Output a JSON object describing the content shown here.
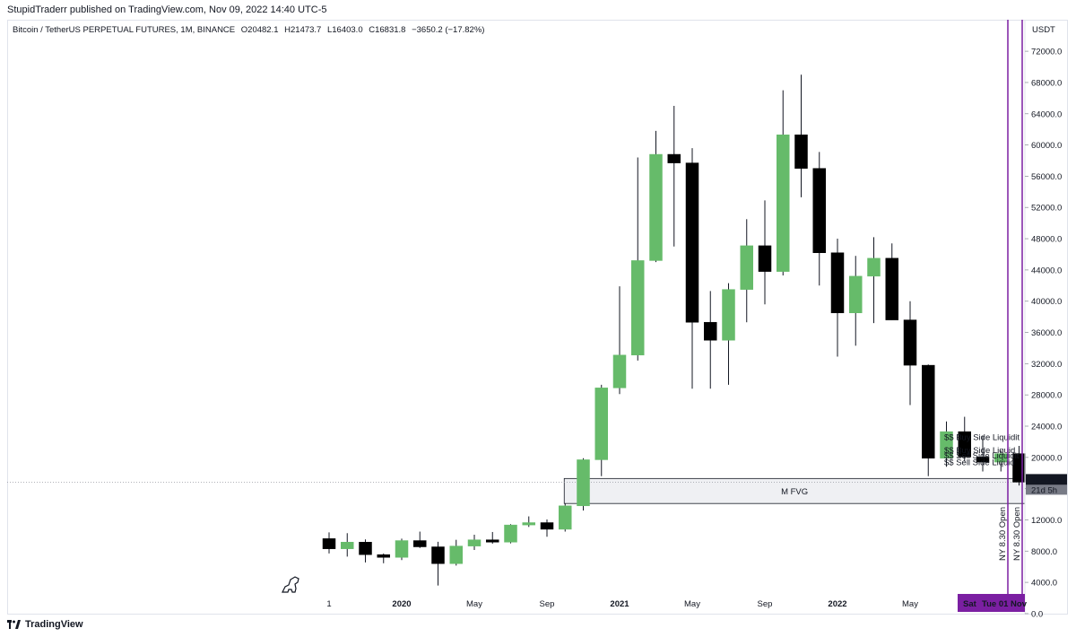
{
  "header": {
    "publisher_line": "StupidTraderr published on TradingView.com, Nov 09, 2022 14:40 UTC-5"
  },
  "legend": {
    "symbol": "Bitcoin / TetherUS PERPETUAL FUTURES, 1M, BINANCE",
    "open": "O20482.1",
    "high": "H21473.7",
    "low": "L16403.0",
    "close": "C16831.8",
    "change": "−3650.2 (−17.82%)"
  },
  "footer": {
    "brand": "TradingView"
  },
  "colors": {
    "up": "#66bb6a",
    "down": "#000000",
    "vline": "#7b1fa2",
    "fvg_fill": "#eff0f3"
  },
  "chart_data": {
    "type": "candlestick",
    "title": "Bitcoin / TetherUS PERPETUAL FUTURES, 1M, BINANCE",
    "currency": "USDT",
    "ylim": [
      -1500,
      75000
    ],
    "y_ticks": [
      0,
      4000,
      8000,
      12000,
      16000,
      20000,
      24000,
      28000,
      32000,
      36000,
      40000,
      44000,
      48000,
      52000,
      56000,
      60000,
      64000,
      68000,
      72000
    ],
    "y_tick_labels": [
      "0.0",
      "4000.0",
      "8000.0",
      "12000.0",
      "16000.0",
      "20000.0",
      "24000.0",
      "28000.0",
      "32000.0",
      "36000.0",
      "40000.0",
      "44000.0",
      "48000.0",
      "52000.0",
      "56000.0",
      "60000.0",
      "64000.0",
      "68000.0",
      "72000.0"
    ],
    "x_labels": [
      {
        "index": 0,
        "label": "1",
        "bold": false
      },
      {
        "index": 4,
        "label": "2020",
        "bold": true
      },
      {
        "index": 8,
        "label": "May",
        "bold": false
      },
      {
        "index": 12,
        "label": "Sep",
        "bold": false
      },
      {
        "index": 16,
        "label": "2021",
        "bold": true
      },
      {
        "index": 20,
        "label": "May",
        "bold": false
      },
      {
        "index": 24,
        "label": "Sep",
        "bold": false
      },
      {
        "index": 28,
        "label": "2022",
        "bold": true
      },
      {
        "index": 32,
        "label": "May",
        "bold": false
      }
    ],
    "candles": [
      {
        "date": "2019-09",
        "o": 9600,
        "h": 10400,
        "l": 7700,
        "c": 8300
      },
      {
        "date": "2019-10",
        "o": 8300,
        "h": 10300,
        "l": 7300,
        "c": 9150
      },
      {
        "date": "2019-11",
        "o": 9150,
        "h": 9500,
        "l": 6550,
        "c": 7550
      },
      {
        "date": "2019-12",
        "o": 7550,
        "h": 7700,
        "l": 6450,
        "c": 7200
      },
      {
        "date": "2020-01",
        "o": 7200,
        "h": 9600,
        "l": 6850,
        "c": 9350
      },
      {
        "date": "2020-02",
        "o": 9350,
        "h": 10500,
        "l": 8400,
        "c": 8550
      },
      {
        "date": "2020-03",
        "o": 8550,
        "h": 9200,
        "l": 3600,
        "c": 6400
      },
      {
        "date": "2020-04",
        "o": 6400,
        "h": 9450,
        "l": 6150,
        "c": 8650
      },
      {
        "date": "2020-05",
        "o": 8650,
        "h": 10100,
        "l": 8150,
        "c": 9450
      },
      {
        "date": "2020-06",
        "o": 9450,
        "h": 10450,
        "l": 8950,
        "c": 9150
      },
      {
        "date": "2020-07",
        "o": 9150,
        "h": 11450,
        "l": 9000,
        "c": 11350
      },
      {
        "date": "2020-08",
        "o": 11350,
        "h": 12450,
        "l": 11100,
        "c": 11650
      },
      {
        "date": "2020-09",
        "o": 11650,
        "h": 12050,
        "l": 9850,
        "c": 10800
      },
      {
        "date": "2020-10",
        "o": 10800,
        "h": 14100,
        "l": 10500,
        "c": 13800
      },
      {
        "date": "2020-11",
        "o": 13800,
        "h": 19900,
        "l": 13200,
        "c": 19700
      },
      {
        "date": "2020-12",
        "o": 19700,
        "h": 29300,
        "l": 17600,
        "c": 28900
      },
      {
        "date": "2021-01",
        "o": 28900,
        "h": 41900,
        "l": 28100,
        "c": 33100
      },
      {
        "date": "2021-02",
        "o": 33100,
        "h": 58400,
        "l": 32400,
        "c": 45200
      },
      {
        "date": "2021-03",
        "o": 45200,
        "h": 61800,
        "l": 45000,
        "c": 58800
      },
      {
        "date": "2021-04",
        "o": 58800,
        "h": 65000,
        "l": 47000,
        "c": 57700
      },
      {
        "date": "2021-05",
        "o": 57700,
        "h": 59600,
        "l": 28800,
        "c": 37300
      },
      {
        "date": "2021-06",
        "o": 37300,
        "h": 41300,
        "l": 28800,
        "c": 35000
      },
      {
        "date": "2021-07",
        "o": 35000,
        "h": 42300,
        "l": 29300,
        "c": 41500
      },
      {
        "date": "2021-08",
        "o": 41500,
        "h": 50500,
        "l": 37300,
        "c": 47100
      },
      {
        "date": "2021-09",
        "o": 47100,
        "h": 52900,
        "l": 39600,
        "c": 43800
      },
      {
        "date": "2021-10",
        "o": 43800,
        "h": 67000,
        "l": 43300,
        "c": 61300
      },
      {
        "date": "2021-11",
        "o": 61300,
        "h": 69000,
        "l": 53300,
        "c": 57000
      },
      {
        "date": "2021-12",
        "o": 57000,
        "h": 59100,
        "l": 42000,
        "c": 46200
      },
      {
        "date": "2022-01",
        "o": 46200,
        "h": 48000,
        "l": 32900,
        "c": 38500
      },
      {
        "date": "2022-02",
        "o": 38500,
        "h": 45800,
        "l": 34300,
        "c": 43200
      },
      {
        "date": "2022-03",
        "o": 43200,
        "h": 48200,
        "l": 37200,
        "c": 45500
      },
      {
        "date": "2022-04",
        "o": 45500,
        "h": 47400,
        "l": 37600,
        "c": 37600
      },
      {
        "date": "2022-05",
        "o": 37600,
        "h": 40000,
        "l": 26700,
        "c": 31800
      },
      {
        "date": "2022-06",
        "o": 31800,
        "h": 31900,
        "l": 17600,
        "c": 19900
      },
      {
        "date": "2022-07",
        "o": 19900,
        "h": 24600,
        "l": 18800,
        "c": 23300
      },
      {
        "date": "2022-08",
        "o": 23300,
        "h": 25200,
        "l": 19500,
        "c": 20050
      },
      {
        "date": "2022-09",
        "o": 20050,
        "h": 22800,
        "l": 18200,
        "c": 19400
      },
      {
        "date": "2022-10",
        "o": 19400,
        "h": 20900,
        "l": 18200,
        "c": 20482
      },
      {
        "date": "2022-11",
        "o": 20482.1,
        "h": 21473.7,
        "l": 16403.0,
        "c": 16831.8
      }
    ],
    "fvg_zone": {
      "label": "M FVG",
      "start_index": 13,
      "top": 17300,
      "bottom": 14100
    },
    "liquidity_labels": [
      {
        "text": "$$ Buy Side Liquidit",
        "price": 22650
      },
      {
        "text": "$$ Buy Side Liquid",
        "price": 20950
      },
      {
        "text": "$$ Sell Side Liquidit",
        "price": 20250
      },
      {
        "text": "$$ Sell Side Liquid",
        "price": 19400
      }
    ],
    "vertical_lines": [
      {
        "label": "NY 8.30 Open",
        "x_offset": 0.35
      },
      {
        "label": "NY 8.30 Open",
        "x_offset": 1.15
      }
    ],
    "price_tag": {
      "value": "16831.8",
      "countdown": "21d 5h",
      "price": 16831.8
    },
    "time_tags": [
      "Sat",
      "Tue 01 Nov"
    ]
  }
}
